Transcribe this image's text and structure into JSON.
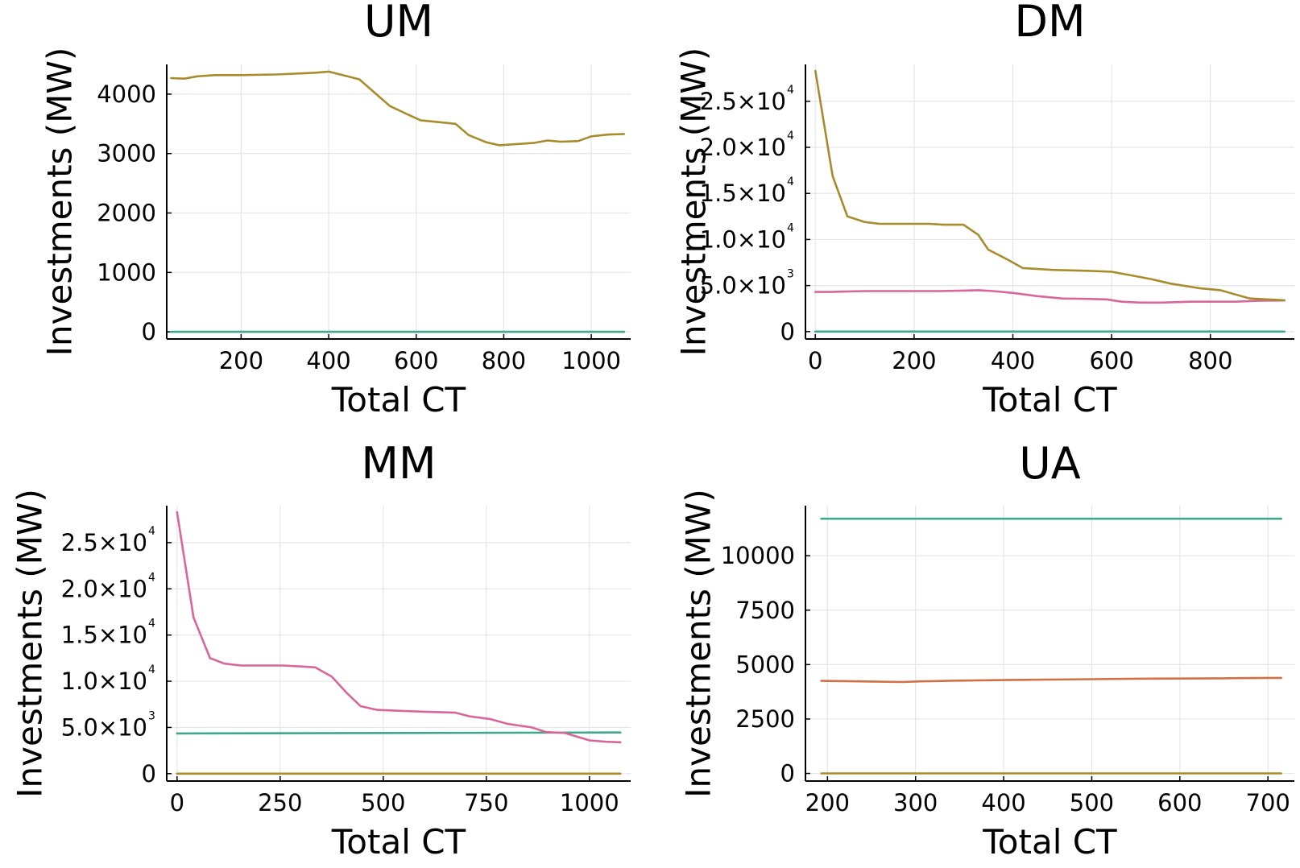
{
  "chart_data": [
    {
      "type": "line",
      "title": "UM",
      "xlabel": "Total CT",
      "ylabel": "Investments (MW)",
      "xlim": [
        30,
        1090
      ],
      "ylim": [
        -120,
        4500
      ],
      "xticks": [
        200,
        400,
        600,
        800,
        1000
      ],
      "yticks": [
        0,
        1000,
        2000,
        3000,
        4000
      ],
      "grid": true,
      "series": [
        {
          "color": "#3da88a",
          "x": [
            40,
            1075
          ],
          "y": [
            0,
            0
          ]
        },
        {
          "color": "#a88c2c",
          "x": [
            40,
            70,
            100,
            140,
            200,
            280,
            340,
            370,
            400,
            470,
            540,
            580,
            610,
            650,
            690,
            720,
            760,
            790,
            830,
            870,
            900,
            930,
            970,
            1000,
            1040,
            1075
          ],
          "y": [
            4270,
            4260,
            4300,
            4320,
            4320,
            4330,
            4350,
            4360,
            4380,
            4250,
            3800,
            3660,
            3560,
            3530,
            3500,
            3310,
            3190,
            3140,
            3160,
            3180,
            3220,
            3200,
            3210,
            3290,
            3320,
            3330
          ]
        }
      ]
    },
    {
      "type": "line",
      "title": "DM",
      "xlabel": "Total CT",
      "ylabel": "Investments (MW)",
      "xlim": [
        -20,
        970
      ],
      "ylim": [
        -800,
        29000
      ],
      "xticks": [
        0,
        200,
        400,
        600,
        800
      ],
      "xtick_labels": [
        "0",
        "200",
        "400",
        "600",
        "800"
      ],
      "yticks": [
        0,
        5000,
        10000,
        15000,
        20000,
        25000
      ],
      "ytick_labels": [
        {
          "mantissa": "0",
          "exp": ""
        },
        {
          "mantissa": "5.0×10",
          "exp": "3"
        },
        {
          "mantissa": "1.0×10",
          "exp": "4"
        },
        {
          "mantissa": "1.5×10",
          "exp": "4"
        },
        {
          "mantissa": "2.0×10",
          "exp": "4"
        },
        {
          "mantissa": "2.5×10",
          "exp": "4"
        }
      ],
      "grid": true,
      "series": [
        {
          "color": "#3da88a",
          "x": [
            0,
            950
          ],
          "y": [
            0,
            0
          ]
        },
        {
          "color": "#d9669a",
          "x": [
            0,
            30,
            60,
            100,
            150,
            200,
            250,
            300,
            330,
            360,
            400,
            450,
            500,
            550,
            590,
            620,
            660,
            700,
            760,
            800,
            850,
            900,
            950
          ],
          "y": [
            4300,
            4300,
            4350,
            4400,
            4400,
            4400,
            4400,
            4450,
            4500,
            4400,
            4200,
            3850,
            3600,
            3550,
            3500,
            3250,
            3150,
            3150,
            3250,
            3250,
            3250,
            3350,
            3380
          ]
        },
        {
          "color": "#a88c2c",
          "x": [
            0,
            35,
            65,
            100,
            130,
            170,
            230,
            260,
            300,
            330,
            350,
            390,
            420,
            480,
            550,
            600,
            640,
            680,
            720,
            780,
            820,
            880,
            950
          ],
          "y": [
            28300,
            16900,
            12500,
            11900,
            11700,
            11700,
            11700,
            11600,
            11600,
            10500,
            8900,
            7800,
            6900,
            6700,
            6600,
            6500,
            6100,
            5700,
            5200,
            4700,
            4500,
            3600,
            3400
          ]
        }
      ]
    },
    {
      "type": "line",
      "title": "MM",
      "xlabel": "Total CT",
      "ylabel": "Investments (MW)",
      "xlim": [
        -25,
        1100
      ],
      "ylim": [
        -800,
        29000
      ],
      "xticks": [
        0,
        250,
        500,
        750,
        1000
      ],
      "xtick_labels": [
        "0",
        "250",
        "500",
        "750",
        "1000"
      ],
      "yticks": [
        0,
        5000,
        10000,
        15000,
        20000,
        25000
      ],
      "ytick_labels": [
        {
          "mantissa": "0",
          "exp": ""
        },
        {
          "mantissa": "5.0×10",
          "exp": "3"
        },
        {
          "mantissa": "1.0×10",
          "exp": "4"
        },
        {
          "mantissa": "1.5×10",
          "exp": "4"
        },
        {
          "mantissa": "2.0×10",
          "exp": "4"
        },
        {
          "mantissa": "2.5×10",
          "exp": "4"
        }
      ],
      "grid": true,
      "series": [
        {
          "color": "#a88c2c",
          "x": [
            0,
            1075
          ],
          "y": [
            0,
            0
          ]
        },
        {
          "color": "#3da88a",
          "x": [
            0,
            1075
          ],
          "y": [
            4350,
            4450
          ]
        },
        {
          "color": "#d9669a",
          "x": [
            0,
            40,
            80,
            115,
            155,
            200,
            255,
            300,
            335,
            375,
            410,
            445,
            485,
            540,
            600,
            675,
            710,
            760,
            800,
            860,
            895,
            940,
            1000,
            1040,
            1075
          ],
          "y": [
            28300,
            16900,
            12500,
            11900,
            11700,
            11700,
            11700,
            11600,
            11500,
            10500,
            8800,
            7300,
            6900,
            6800,
            6700,
            6600,
            6200,
            5900,
            5400,
            5000,
            4500,
            4400,
            3600,
            3450,
            3400
          ]
        }
      ]
    },
    {
      "type": "line",
      "title": "UA",
      "xlabel": "Total CT",
      "ylabel": "Investments (MW)",
      "xlim": [
        175,
        730
      ],
      "ylim": [
        -350,
        12300
      ],
      "xticks": [
        200,
        300,
        400,
        500,
        600,
        700
      ],
      "yticks": [
        0,
        2500,
        5000,
        7500,
        10000
      ],
      "grid": true,
      "series": [
        {
          "color": "#a88c2c",
          "x": [
            193,
            715
          ],
          "y": [
            0,
            0
          ]
        },
        {
          "color": "#3da88a",
          "x": [
            193,
            715
          ],
          "y": [
            11700,
            11700
          ]
        },
        {
          "color": "#d36f45",
          "x": [
            193,
            220,
            250,
            285,
            300,
            340,
            400,
            450,
            500,
            550,
            600,
            650,
            700,
            715
          ],
          "y": [
            4250,
            4240,
            4220,
            4200,
            4220,
            4260,
            4290,
            4310,
            4330,
            4350,
            4360,
            4370,
            4390,
            4390
          ]
        }
      ]
    }
  ]
}
